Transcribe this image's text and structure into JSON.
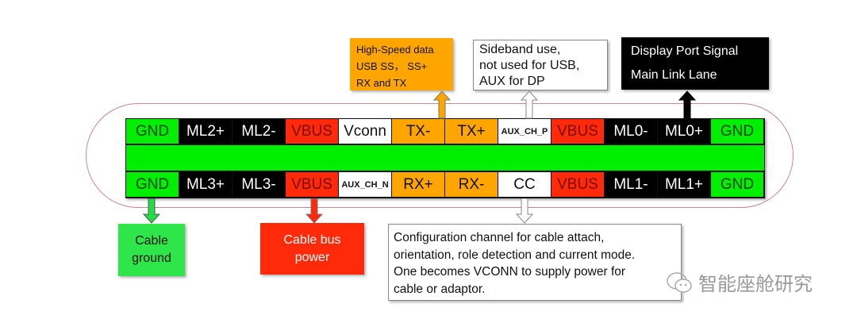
{
  "colors": {
    "gnd": "#00ee00",
    "ml": "#000000",
    "vbus": "#ff2a0a",
    "white": "#ffffff",
    "usb": "#ffa500"
  },
  "top_row": [
    {
      "label": "GND",
      "type": "gnd"
    },
    {
      "label": "ML2+",
      "type": "ml"
    },
    {
      "label": "ML2-",
      "type": "ml"
    },
    {
      "label": "VBUS",
      "type": "vbus"
    },
    {
      "label": "Vconn",
      "type": "white"
    },
    {
      "label": "TX-",
      "type": "usb"
    },
    {
      "label": "TX+",
      "type": "usb"
    },
    {
      "label": "AUX_CH_P",
      "type": "white",
      "small": true
    },
    {
      "label": "VBUS",
      "type": "vbus"
    },
    {
      "label": "ML0-",
      "type": "ml"
    },
    {
      "label": "ML0+",
      "type": "ml"
    },
    {
      "label": "GND",
      "type": "gnd"
    }
  ],
  "bottom_row": [
    {
      "label": "GND",
      "type": "gnd"
    },
    {
      "label": "ML3+",
      "type": "ml"
    },
    {
      "label": "ML3-",
      "type": "ml"
    },
    {
      "label": "VBUS",
      "type": "vbus"
    },
    {
      "label": "AUX_CH_N",
      "type": "white",
      "small": true
    },
    {
      "label": "RX+",
      "type": "usb"
    },
    {
      "label": "RX-",
      "type": "usb"
    },
    {
      "label": "CC",
      "type": "white"
    },
    {
      "label": "VBUS",
      "type": "vbus"
    },
    {
      "label": "ML1-",
      "type": "ml"
    },
    {
      "label": "ML1+",
      "type": "ml"
    },
    {
      "label": "GND",
      "type": "gnd"
    }
  ],
  "callouts": {
    "high_speed": [
      "High-Speed data",
      "USB SS， SS+",
      "RX and TX"
    ],
    "sideband": [
      "Sideband use,",
      "not used for USB,",
      "AUX for DP"
    ],
    "displayport": [
      "Display Port Signal",
      "Main Link Lane"
    ],
    "ground": [
      "Cable",
      "ground"
    ],
    "power": [
      "Cable bus",
      "power"
    ],
    "cc": [
      "Configuration channel for cable attach,",
      "orientation, role detection and current mode.",
      "One becomes VCONN to supply power for",
      "cable or adaptor."
    ]
  },
  "watermark": "智能座舱研究"
}
